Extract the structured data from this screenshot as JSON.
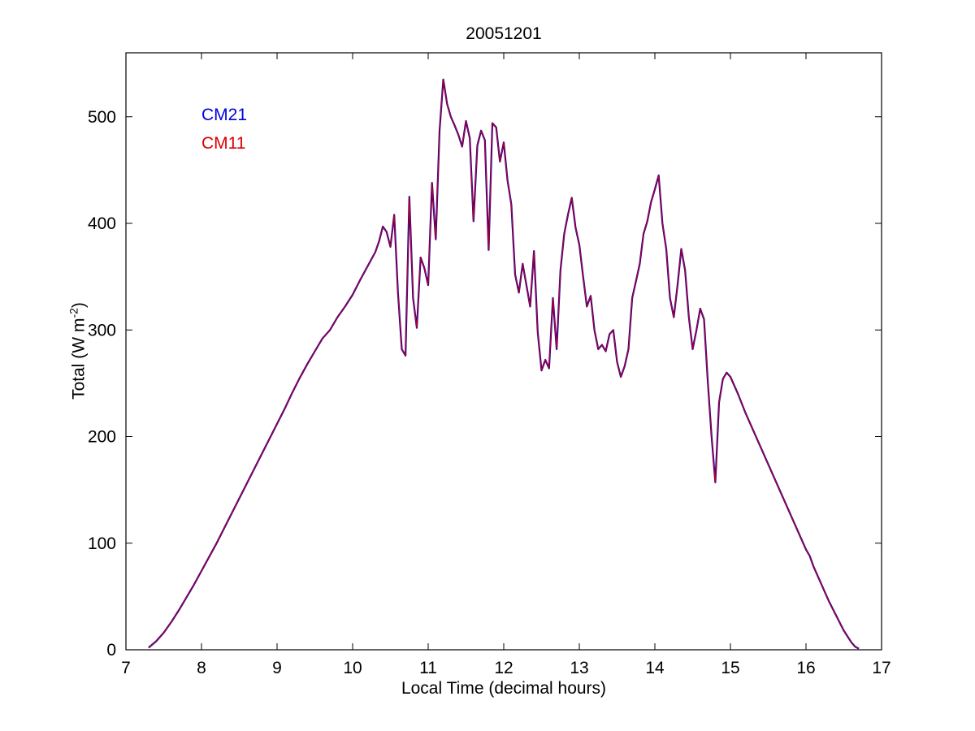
{
  "figure": {
    "title": "20051201",
    "xlabel": "Local Time (decimal hours)",
    "ylabel_main": "Total (W m",
    "ylabel_sup": "-2",
    "ylabel_close": ")"
  },
  "legend": {
    "items": [
      {
        "label": "CM21",
        "color": "#0000dd"
      },
      {
        "label": "CM11",
        "color": "#dd0000"
      }
    ]
  },
  "chart_data": {
    "type": "line",
    "title": "20051201",
    "xlabel": "Local Time (decimal hours)",
    "ylabel": "Total (W m⁻²)",
    "xlim": [
      7,
      17
    ],
    "ylim": [
      0,
      560
    ],
    "xticks": [
      7,
      8,
      9,
      10,
      11,
      12,
      13,
      14,
      15,
      16,
      17
    ],
    "yticks": [
      0,
      100,
      200,
      300,
      400,
      500
    ],
    "grid": false,
    "legend_position": "upper-left-text-labels",
    "x": [
      7.3,
      7.4,
      7.5,
      7.6,
      7.7,
      7.8,
      7.9,
      8.0,
      8.1,
      8.2,
      8.3,
      8.4,
      8.5,
      8.6,
      8.7,
      8.8,
      8.9,
      9.0,
      9.1,
      9.2,
      9.3,
      9.4,
      9.5,
      9.6,
      9.7,
      9.8,
      9.9,
      10.0,
      10.1,
      10.2,
      10.3,
      10.35,
      10.4,
      10.45,
      10.5,
      10.55,
      10.6,
      10.65,
      10.7,
      10.75,
      10.8,
      10.85,
      10.9,
      10.95,
      11.0,
      11.05,
      11.1,
      11.15,
      11.2,
      11.25,
      11.3,
      11.35,
      11.4,
      11.45,
      11.5,
      11.55,
      11.6,
      11.65,
      11.7,
      11.75,
      11.8,
      11.85,
      11.9,
      11.95,
      12.0,
      12.05,
      12.1,
      12.15,
      12.2,
      12.25,
      12.3,
      12.35,
      12.4,
      12.45,
      12.5,
      12.55,
      12.6,
      12.65,
      12.7,
      12.75,
      12.8,
      12.85,
      12.9,
      12.95,
      13.0,
      13.05,
      13.1,
      13.15,
      13.2,
      13.25,
      13.3,
      13.35,
      13.4,
      13.45,
      13.5,
      13.55,
      13.6,
      13.65,
      13.7,
      13.75,
      13.8,
      13.85,
      13.9,
      13.95,
      14.0,
      14.05,
      14.1,
      14.15,
      14.2,
      14.25,
      14.3,
      14.35,
      14.4,
      14.45,
      14.5,
      14.55,
      14.6,
      14.65,
      14.7,
      14.75,
      14.8,
      14.85,
      14.9,
      14.95,
      15.0,
      15.1,
      15.2,
      15.3,
      15.4,
      15.5,
      15.6,
      15.7,
      15.8,
      15.9,
      16.0,
      16.05,
      16.1,
      16.2,
      16.3,
      16.4,
      16.5,
      16.6,
      16.65,
      16.7
    ],
    "series": [
      {
        "name": "CM21",
        "color": "#0000cc",
        "width": 2.2,
        "values": [
          2,
          8,
          16,
          26,
          37,
          49,
          61,
          74,
          87,
          100,
          114,
          128,
          142,
          156,
          170,
          184,
          198,
          212,
          226,
          241,
          255,
          268,
          280,
          292,
          300,
          312,
          322,
          333,
          347,
          360,
          373,
          383,
          397,
          392,
          378,
          408,
          335,
          282,
          276,
          425,
          330,
          302,
          368,
          358,
          342,
          438,
          385,
          487,
          535,
          512,
          500,
          492,
          483,
          472,
          496,
          480,
          402,
          473,
          487,
          478,
          375,
          494,
          490,
          458,
          476,
          440,
          418,
          352,
          335,
          362,
          342,
          322,
          374,
          298,
          262,
          272,
          264,
          330,
          282,
          356,
          390,
          408,
          424,
          396,
          380,
          350,
          322,
          332,
          300,
          282,
          286,
          280,
          296,
          300,
          270,
          256,
          266,
          282,
          330,
          346,
          362,
          390,
          402,
          420,
          432,
          445,
          400,
          376,
          330,
          312,
          342,
          376,
          356,
          312,
          282,
          300,
          320,
          310,
          252,
          200,
          157,
          232,
          254,
          260,
          256,
          240,
          222,
          206,
          190,
          174,
          158,
          142,
          126,
          110,
          94,
          88,
          78,
          62,
          46,
          32,
          18,
          7,
          3,
          1
        ]
      },
      {
        "name": "CM11",
        "color": "#cc0000",
        "width": 1.1,
        "values": [
          2,
          8,
          16,
          26,
          37,
          49,
          61,
          74,
          87,
          100,
          114,
          128,
          142,
          156,
          170,
          184,
          198,
          212,
          226,
          241,
          255,
          268,
          280,
          292,
          300,
          312,
          322,
          333,
          347,
          360,
          373,
          383,
          397,
          392,
          378,
          408,
          335,
          282,
          276,
          425,
          330,
          302,
          368,
          358,
          342,
          438,
          385,
          487,
          535,
          512,
          500,
          492,
          483,
          472,
          496,
          480,
          402,
          473,
          487,
          478,
          375,
          494,
          490,
          458,
          476,
          440,
          418,
          352,
          335,
          362,
          342,
          322,
          374,
          298,
          262,
          272,
          264,
          330,
          282,
          356,
          390,
          408,
          424,
          396,
          380,
          350,
          322,
          332,
          300,
          282,
          286,
          280,
          296,
          300,
          270,
          256,
          266,
          282,
          330,
          346,
          362,
          390,
          402,
          420,
          432,
          445,
          400,
          376,
          330,
          312,
          342,
          376,
          356,
          312,
          282,
          300,
          320,
          310,
          252,
          200,
          157,
          232,
          254,
          260,
          256,
          240,
          222,
          206,
          190,
          174,
          158,
          142,
          126,
          110,
          94,
          88,
          78,
          62,
          46,
          32,
          18,
          7,
          3,
          1
        ]
      }
    ]
  }
}
